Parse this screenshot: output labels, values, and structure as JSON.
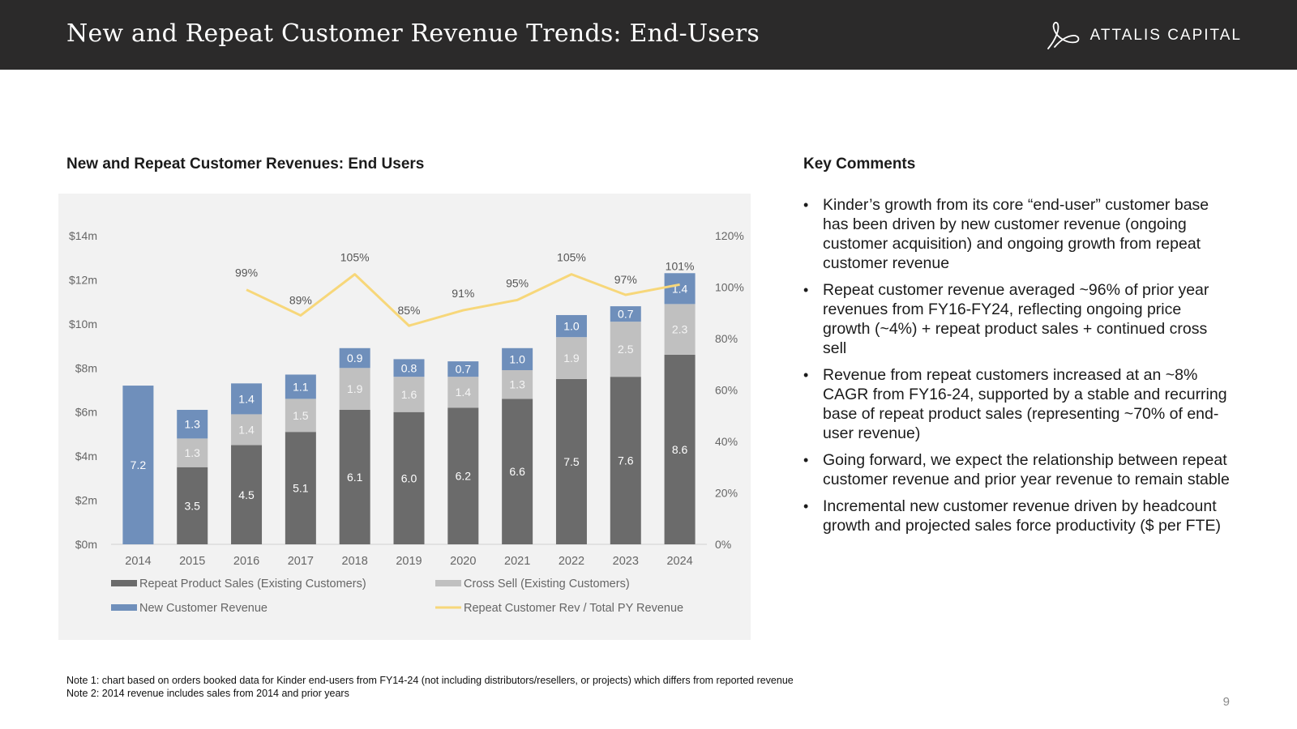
{
  "header": {
    "title": "New and Repeat Customer Revenue Trends: End-Users",
    "brand": "ATTALIS CAPITAL"
  },
  "chart_section": {
    "title": "New and Repeat Customer Revenues: End Users"
  },
  "comments_section": {
    "title": "Key Comments",
    "bullet": "•",
    "items": [
      "Kinder’s growth from its core “end-user” customer base has been driven by new customer revenue (ongoing customer acquisition) and ongoing growth from repeat customer revenue",
      "Repeat customer revenue averaged ~96% of prior year revenues from FY16-FY24, reflecting ongoing price growth (~4%) + repeat product sales + continued cross sell",
      "Revenue from repeat customers increased at an ~8% CAGR from FY16-24, supported by a stable and recurring base of repeat product sales (representing ~70% of end-user revenue)",
      "Going forward, we expect the relationship between repeat customer revenue and prior year revenue to remain stable",
      "Incremental new customer revenue driven by headcount growth and projected sales force productivity ($ per FTE)"
    ]
  },
  "notes": [
    "Note 1: chart based on orders booked data for Kinder end-users from FY14-24 (not including distributors/resellers, or projects) which differs from reported revenue",
    "Note 2: 2014 revenue includes sales from 2014 and prior years"
  ],
  "page_number": "9",
  "colors": {
    "header_bg": "#2b2a2a",
    "repeat": "#6b6b6b",
    "cross_sell": "#c0c0c0",
    "new_customer": "#6f8fbb",
    "ratio_line": "#f7d77a",
    "panel_bg": "#f2f2f2"
  },
  "chart_data": {
    "type": "bar",
    "stacked": true,
    "title": "New and Repeat Customer Revenues: End Users",
    "categories": [
      "2014",
      "2015",
      "2016",
      "2017",
      "2018",
      "2019",
      "2020",
      "2021",
      "2022",
      "2023",
      "2024"
    ],
    "series": [
      {
        "name": "Repeat Product Sales (Existing Customers)",
        "values": [
          null,
          3.5,
          4.5,
          5.1,
          6.1,
          6.0,
          6.2,
          6.6,
          7.5,
          7.6,
          8.6
        ]
      },
      {
        "name": "Cross Sell (Existing Customers)",
        "values": [
          null,
          1.3,
          1.4,
          1.5,
          1.9,
          1.6,
          1.4,
          1.3,
          1.9,
          2.5,
          2.3
        ]
      },
      {
        "name": "New Customer Revenue",
        "values": [
          7.2,
          1.3,
          1.4,
          1.1,
          0.9,
          0.8,
          0.7,
          1.0,
          1.0,
          0.7,
          1.4
        ]
      }
    ],
    "line_series": {
      "name": "Repeat Customer Rev / Total PY Revenue",
      "axis": "right",
      "values": [
        null,
        null,
        99,
        89,
        105,
        85,
        91,
        95,
        105,
        97,
        101
      ],
      "labels": [
        "",
        "",
        "99%",
        "89%",
        "105%",
        "85%",
        "91%",
        "95%",
        "105%",
        "97%",
        "101%"
      ]
    },
    "y_left": {
      "range": [
        0,
        14
      ],
      "ticks": [
        0,
        2,
        4,
        6,
        8,
        10,
        12,
        14
      ],
      "tick_labels": [
        "$0m",
        "$2m",
        "$4m",
        "$6m",
        "$8m",
        "$10m",
        "$12m",
        "$14m"
      ]
    },
    "y_right": {
      "range": [
        0,
        120
      ],
      "ticks": [
        0,
        20,
        40,
        60,
        80,
        100,
        120
      ],
      "tick_labels": [
        "0%",
        "20%",
        "40%",
        "60%",
        "80%",
        "100%",
        "120%"
      ]
    },
    "grid": false,
    "legend": {
      "position": "bottom",
      "entries": [
        "Repeat Product Sales (Existing Customers)",
        "Cross Sell (Existing Customers)",
        "New Customer Revenue",
        "Repeat Customer Rev / Total PY Revenue"
      ]
    }
  }
}
